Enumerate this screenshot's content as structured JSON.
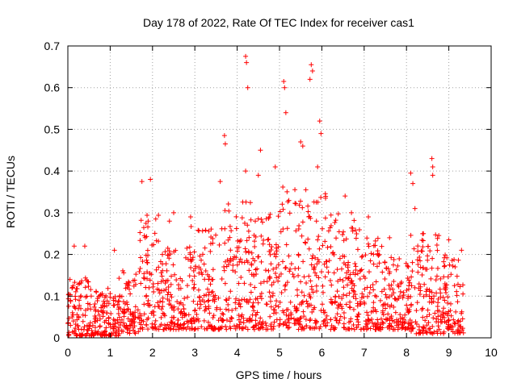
{
  "chart_data": {
    "type": "scatter",
    "title": "Day 178 of 2022, Rate Of TEC Index for receiver cas1",
    "xlabel": "GPS time / hours",
    "ylabel": "ROTI / TECUs",
    "xlim": [
      0,
      10
    ],
    "ylim": [
      0,
      0.7
    ],
    "xticks": [
      0,
      1,
      2,
      3,
      4,
      5,
      6,
      7,
      8,
      9,
      10
    ],
    "yticks": [
      0,
      0.1,
      0.2,
      0.3,
      0.4,
      0.5,
      0.6,
      0.7
    ],
    "xtick_labels": [
      "0",
      "1",
      "2",
      "3",
      "4",
      "5",
      "6",
      "7",
      "8",
      "9",
      "10"
    ],
    "ytick_labels": [
      "0",
      "0.1",
      "0.2",
      "0.3",
      "0.4",
      "0.5",
      "0.6",
      "0.7"
    ],
    "grid": true,
    "legend": "none",
    "marker": "+",
    "color": "#ff0000",
    "notable_points": [
      {
        "x": 4.2,
        "y": 0.675
      },
      {
        "x": 4.22,
        "y": 0.66
      },
      {
        "x": 4.25,
        "y": 0.6
      },
      {
        "x": 5.1,
        "y": 0.615
      },
      {
        "x": 5.12,
        "y": 0.6
      },
      {
        "x": 5.15,
        "y": 0.54
      },
      {
        "x": 5.75,
        "y": 0.655
      },
      {
        "x": 5.78,
        "y": 0.64
      },
      {
        "x": 5.72,
        "y": 0.62
      },
      {
        "x": 5.95,
        "y": 0.52
      },
      {
        "x": 5.98,
        "y": 0.49
      },
      {
        "x": 3.7,
        "y": 0.485
      },
      {
        "x": 3.72,
        "y": 0.465
      },
      {
        "x": 4.55,
        "y": 0.45
      },
      {
        "x": 5.5,
        "y": 0.47
      },
      {
        "x": 5.55,
        "y": 0.46
      },
      {
        "x": 8.6,
        "y": 0.43
      },
      {
        "x": 8.62,
        "y": 0.41
      },
      {
        "x": 8.62,
        "y": 0.39
      },
      {
        "x": 8.1,
        "y": 0.395
      },
      {
        "x": 8.15,
        "y": 0.37
      },
      {
        "x": 1.75,
        "y": 0.375
      },
      {
        "x": 1.95,
        "y": 0.38
      },
      {
        "x": 4.2,
        "y": 0.4
      },
      {
        "x": 4.5,
        "y": 0.39
      },
      {
        "x": 4.9,
        "y": 0.41
      },
      {
        "x": 5.9,
        "y": 0.41
      },
      {
        "x": 3.6,
        "y": 0.375
      },
      {
        "x": 6.55,
        "y": 0.34
      },
      {
        "x": 7.1,
        "y": 0.29
      },
      {
        "x": 8.2,
        "y": 0.31
      },
      {
        "x": 9.0,
        "y": 0.235
      },
      {
        "x": 9.3,
        "y": 0.21
      },
      {
        "x": 0.15,
        "y": 0.22
      },
      {
        "x": 0.4,
        "y": 0.22
      },
      {
        "x": 0.05,
        "y": 0.14
      },
      {
        "x": 2.4,
        "y": 0.28
      },
      {
        "x": 2.5,
        "y": 0.3
      },
      {
        "x": 2.9,
        "y": 0.29
      },
      {
        "x": 1.1,
        "y": 0.21
      },
      {
        "x": 6.7,
        "y": 0.3
      },
      {
        "x": 7.6,
        "y": 0.24
      },
      {
        "x": 8.4,
        "y": 0.25
      }
    ],
    "density_envelope": [
      {
        "x_range": [
          0.0,
          0.5
        ],
        "y_range": [
          0.005,
          0.15
        ]
      },
      {
        "x_range": [
          0.5,
          1.2
        ],
        "y_range": [
          0.005,
          0.12
        ]
      },
      {
        "x_range": [
          1.2,
          1.7
        ],
        "y_range": [
          0.01,
          0.17
        ]
      },
      {
        "x_range": [
          1.7,
          2.2
        ],
        "y_range": [
          0.02,
          0.3
        ]
      },
      {
        "x_range": [
          2.2,
          2.9
        ],
        "y_range": [
          0.02,
          0.22
        ]
      },
      {
        "x_range": [
          2.9,
          3.6
        ],
        "y_range": [
          0.02,
          0.27
        ]
      },
      {
        "x_range": [
          3.6,
          4.4
        ],
        "y_range": [
          0.02,
          0.33
        ]
      },
      {
        "x_range": [
          4.4,
          5.0
        ],
        "y_range": [
          0.02,
          0.3
        ]
      },
      {
        "x_range": [
          5.0,
          6.1
        ],
        "y_range": [
          0.02,
          0.37
        ]
      },
      {
        "x_range": [
          6.1,
          6.9
        ],
        "y_range": [
          0.02,
          0.3
        ]
      },
      {
        "x_range": [
          6.9,
          7.5
        ],
        "y_range": [
          0.02,
          0.24
        ]
      },
      {
        "x_range": [
          7.5,
          8.1
        ],
        "y_range": [
          0.02,
          0.2
        ]
      },
      {
        "x_range": [
          8.1,
          8.8
        ],
        "y_range": [
          0.01,
          0.25
        ]
      },
      {
        "x_range": [
          8.8,
          9.35
        ],
        "y_range": [
          0.01,
          0.2
        ]
      }
    ]
  }
}
